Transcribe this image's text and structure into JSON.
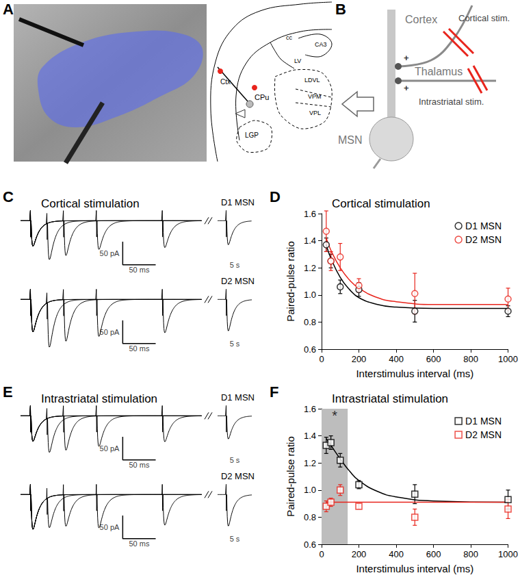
{
  "chart_data": [
    {
      "panel": "C",
      "type": "trace",
      "title": "Cortical stimulation",
      "color": "#000000",
      "tick_labels": false,
      "xlim": [
        -15,
        260
      ],
      "ylim": [
        -110,
        30
      ],
      "break_xlim": [
        -15,
        45
      ],
      "break_label": "5 s",
      "scale_bar": {
        "current": 50,
        "current_label": "50 pA",
        "time": 50,
        "time_label": "50 ms"
      },
      "intervals": [
        25,
        50,
        100,
        200
      ],
      "series": [
        {
          "name": "D1 MSN",
          "first_peak": -55,
          "second_peaks": [
            -80,
            -75,
            -62,
            -58
          ],
          "break_peak": -52
        },
        {
          "name": "D2 MSN",
          "first_peak": -70,
          "second_peaks": [
            -98,
            -90,
            -80,
            -72
          ],
          "break_peak": -68
        }
      ]
    },
    {
      "panel": "D",
      "type": "scatter",
      "title": "Cortical stimulation",
      "x_label": "Interstimulus interval (ms)",
      "y_label": "Paired-pulse ratio",
      "xlim": [
        0,
        1000
      ],
      "xticks": [
        0,
        200,
        400,
        600,
        800,
        1000
      ],
      "ylim": [
        0.6,
        1.6
      ],
      "yticks": [
        0.6,
        0.8,
        {
          "value": 1,
          "label": "1.0"
        },
        1.2,
        1.4,
        1.6
      ],
      "grid": false,
      "legend": "upper right",
      "x": [
        25,
        50,
        100,
        200,
        500,
        1000
      ],
      "series": [
        {
          "name": "D1 MSN",
          "color": "#000000",
          "marker": "circle",
          "values": [
            1.37,
            1.25,
            1.06,
            1.04,
            0.88,
            0.88
          ],
          "errors": [
            0.05,
            0.05,
            0.05,
            0.05,
            0.08,
            0.04
          ],
          "fit": {
            "x": [
              25,
              50,
              100,
              150,
              200,
              300,
              400,
              600,
              1000
            ],
            "values": [
              1.37,
              1.27,
              1.13,
              1.04,
              0.98,
              0.93,
              0.91,
              0.9,
              0.9
            ]
          }
        },
        {
          "name": "D2 MSN",
          "color": "#e8241c",
          "marker": "circle",
          "values": [
            1.47,
            1.25,
            1.28,
            1.07,
            1.01,
            0.97
          ],
          "errors": [
            0.15,
            0.07,
            0.1,
            0.05,
            0.15,
            0.08
          ],
          "fit": {
            "x": [
              25,
              50,
              100,
              150,
              200,
              300,
              400,
              600,
              1000
            ],
            "values": [
              1.42,
              1.33,
              1.2,
              1.11,
              1.05,
              0.98,
              0.95,
              0.93,
              0.93
            ]
          }
        }
      ]
    },
    {
      "panel": "E",
      "type": "trace",
      "title": "Intrastriatal stimulation",
      "color": "#000000",
      "tick_labels": false,
      "xlim": [
        -15,
        260
      ],
      "ylim": [
        -110,
        30
      ],
      "break_xlim": [
        -15,
        45
      ],
      "break_label": "5 s",
      "scale_bar": {
        "current": 50,
        "current_label": "50 pA",
        "time": 50,
        "time_label": "50 ms"
      },
      "intervals": [
        25,
        50,
        100,
        200
      ],
      "series": [
        {
          "name": "D1 MSN",
          "first_peak": -55,
          "second_peaks": [
            -75,
            -74,
            -66,
            -56
          ],
          "break_peak": -50
        },
        {
          "name": "D2 MSN",
          "first_peak": -75,
          "second_peaks": [
            -66,
            -68,
            -72,
            -66
          ],
          "break_peak": -68
        }
      ]
    },
    {
      "panel": "F",
      "type": "scatter",
      "title": "Intrastriatal stimulation",
      "x_label": "Interstimulus interval (ms)",
      "y_label": "Paired-pulse ratio",
      "xlim": [
        0,
        1000
      ],
      "xticks": [
        0,
        200,
        400,
        600,
        800,
        1000
      ],
      "ylim": [
        0.6,
        1.6
      ],
      "yticks": [
        0.6,
        0.8,
        {
          "value": 1,
          "label": "1.0"
        },
        1.2,
        1.4,
        1.6
      ],
      "grid": false,
      "legend": "upper right",
      "shaded_x": [
        0,
        140
      ],
      "annotations": [
        {
          "text": "*",
          "x": 70,
          "y": 1.55
        }
      ],
      "x": [
        25,
        50,
        100,
        200,
        500,
        1000
      ],
      "series": [
        {
          "name": "D1 MSN",
          "color": "#000000",
          "marker": "square",
          "values": [
            1.33,
            1.35,
            1.22,
            1.04,
            0.97,
            0.93
          ],
          "errors": [
            0.06,
            0.05,
            0.05,
            0.03,
            0.07,
            0.07
          ],
          "fit": {
            "x": [
              25,
              50,
              100,
              150,
              200,
              300,
              400,
              600,
              1000
            ],
            "values": [
              1.38,
              1.33,
              1.23,
              1.14,
              1.07,
              0.99,
              0.95,
              0.92,
              0.91
            ]
          }
        },
        {
          "name": "D2 MSN",
          "color": "#e8241c",
          "marker": "square",
          "values": [
            0.88,
            0.91,
            1.0,
            0.88,
            0.8,
            0.86
          ],
          "errors": [
            0.04,
            0.03,
            0.04,
            0.02,
            0.06,
            0.07
          ],
          "fit": {
            "x": [
              25,
              1000
            ],
            "values": [
              0.91,
              0.91
            ]
          }
        }
      ]
    }
  ],
  "diagram_a": {
    "panel": "A",
    "labels": {
      "ctx": "Ctx",
      "cpu": "CPu",
      "lgp": "LGP",
      "cc": "cc",
      "lv": "LV",
      "ca3": "CA3",
      "ldvl": "LDVL",
      "vpm": "VPM",
      "vpl": "VPL"
    }
  },
  "diagram_b": {
    "panel": "B",
    "labels": {
      "cortex": "Cortex",
      "cortical_stim": "Cortical stim.",
      "thalamus": "Thalamus",
      "intrastriatal_stim": "Intrastriatal stim.",
      "msn": "MSN",
      "synapse": "+"
    }
  }
}
